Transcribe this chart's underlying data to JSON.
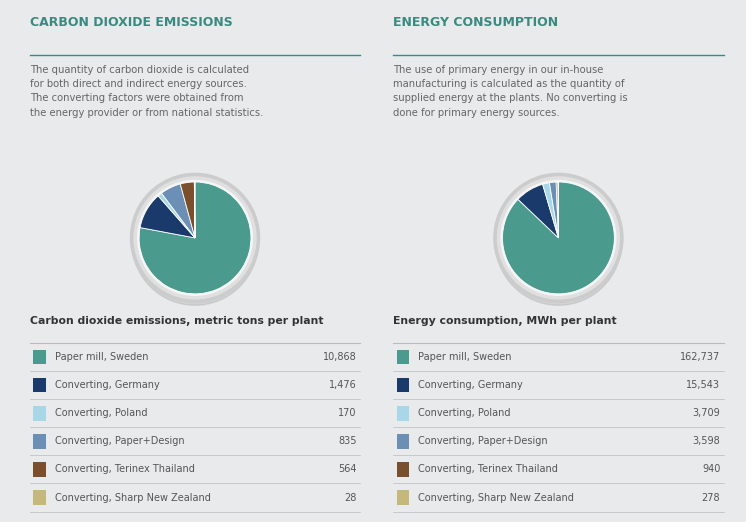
{
  "background_color": "#e8eaeb",
  "left_title": "CARBON DIOXIDE EMISSIONS",
  "right_title": "ENERGY CONSUMPTION",
  "left_desc": "The quantity of carbon dioxide is calculated\nfor both direct and indirect energy sources.\nThe converting factors were obtained from\nthe energy provider or from national statistics.",
  "right_desc": "The use of primary energy in our in-house\nmanufacturing is calculated as the quantity of\nsupplied energy at the plants. No converting is\ndone for primary energy sources.",
  "left_table_title": "Carbon dioxide emissions, metric tons per plant",
  "right_table_title": "Energy consumption, MWh per plant",
  "categories": [
    "Paper mill, Sweden",
    "Converting, Germany",
    "Converting, Poland",
    "Converting, Paper+Design",
    "Converting, Terinex Thailand",
    "Converting, Sharp New Zealand"
  ],
  "colors": [
    "#4a9a8e",
    "#1a3a6b",
    "#a8d8e8",
    "#6b8fb5",
    "#7a4f2e",
    "#c4b97a"
  ],
  "co2_values": [
    10868,
    1476,
    170,
    835,
    564,
    28
  ],
  "co2_labels": [
    "10,868",
    "1,476",
    "170",
    "835",
    "564",
    "28"
  ],
  "energy_values": [
    162737,
    15543,
    3709,
    3598,
    940,
    278
  ],
  "energy_labels": [
    "162,737",
    "15,543",
    "3,709",
    "3,598",
    "940",
    "278"
  ],
  "title_color": "#3a8a80",
  "title_fontsize": 9.0,
  "desc_fontsize": 7.2,
  "table_title_fontsize": 7.8,
  "row_fontsize": 7.0,
  "desc_color": "#666666",
  "table_title_color": "#333333",
  "label_color": "#555555",
  "value_color": "#555555",
  "divider_color": "#bbbbbb"
}
